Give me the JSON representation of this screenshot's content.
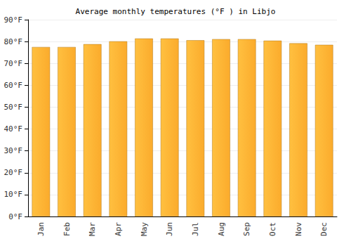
{
  "chart_data": {
    "type": "bar",
    "title": "Average monthly temperatures (°F ) in Libjo",
    "categories": [
      "Jan",
      "Feb",
      "Mar",
      "Apr",
      "May",
      "Jun",
      "Jul",
      "Aug",
      "Sep",
      "Oct",
      "Nov",
      "Dec"
    ],
    "values": [
      77.5,
      77.5,
      78.8,
      80.1,
      81.4,
      81.4,
      80.6,
      81.1,
      81.1,
      80.4,
      79.2,
      78.5
    ],
    "color": "#fbab2c",
    "ylim": [
      0,
      90
    ],
    "yticks": [
      {
        "value": 0,
        "label": "0°F"
      },
      {
        "value": 10,
        "label": "10°F"
      },
      {
        "value": 20,
        "label": "20°F"
      },
      {
        "value": 30,
        "label": "30°F"
      },
      {
        "value": 40,
        "label": "40°F"
      },
      {
        "value": 50,
        "label": "50°F"
      },
      {
        "value": 60,
        "label": "60°F"
      },
      {
        "value": 70,
        "label": "70°F"
      },
      {
        "value": 80,
        "label": "80°F"
      },
      {
        "value": 90,
        "label": "90°F"
      }
    ],
    "grid": true
  }
}
